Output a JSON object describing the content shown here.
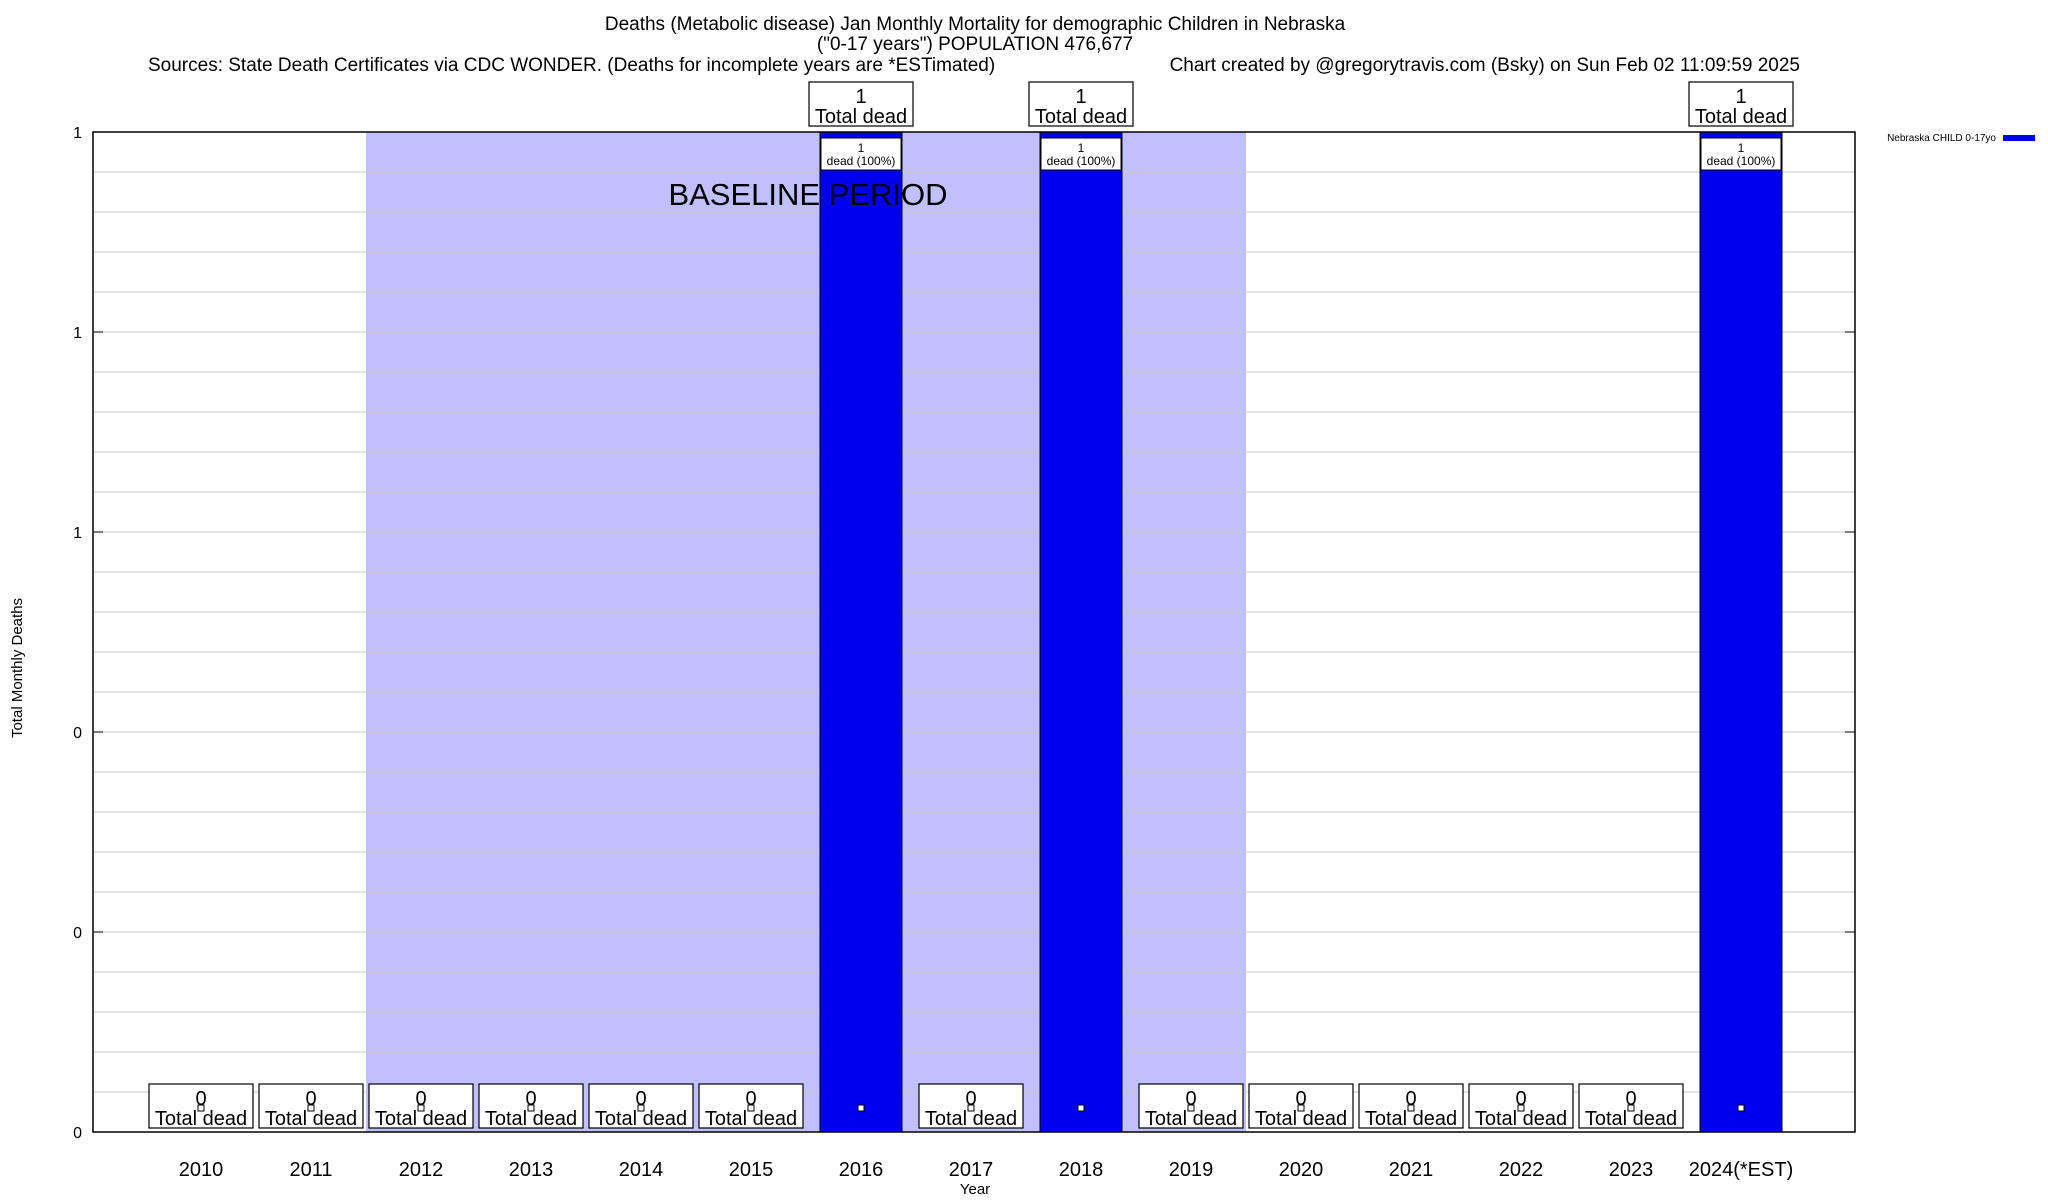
{
  "chart_data": {
    "type": "bar",
    "title_lines": [
      "Deaths (Metabolic disease) Jan Monthly Mortality for demographic Children in Nebraska",
      "(\"0-17 years\") POPULATION 476,677"
    ],
    "sources": "Sources: State Death Certificates via CDC WONDER. (Deaths for incomplete years are *ESTimated)",
    "credit": "Chart created by @gregorytravis.com (Bsky) on Sun Feb 02 11:09:59 2025",
    "xlabel": "Year",
    "ylabel": "Total Monthly Deaths",
    "categories": [
      "2010",
      "2011",
      "2012",
      "2013",
      "2014",
      "2015",
      "2016",
      "2017",
      "2018",
      "2019",
      "2020",
      "2021",
      "2022",
      "2023",
      "2024(*EST)"
    ],
    "series": [
      {
        "name": "Nebraska CHILD 0-17yo",
        "values": [
          0,
          0,
          0,
          0,
          0,
          0,
          1,
          0,
          1,
          0,
          0,
          0,
          0,
          0,
          1
        ]
      }
    ],
    "ylim": [
      0,
      1
    ],
    "ytick_labels": [
      "0",
      "0",
      "0",
      "1",
      "1",
      "1"
    ],
    "baseline_label": "BASELINE PERIOD",
    "baseline_start": "2012",
    "baseline_end": "2019",
    "total_label": "Total dead",
    "inner_label": "dead (100%)",
    "colors": {
      "bar": "#0000ee",
      "baseline": "#c0c0ff",
      "grid": "#c8c8c8"
    },
    "grid": true,
    "legend_position": "top-right"
  }
}
